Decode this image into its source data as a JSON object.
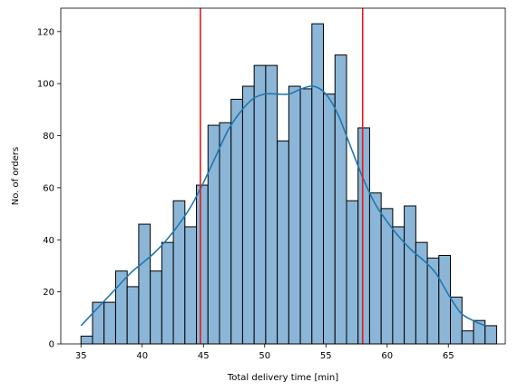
{
  "chart_data": {
    "type": "bar",
    "subtype": "histogram-with-kde",
    "xlabel": "Total delivery time [min]",
    "ylabel": "No. of orders",
    "xlim": [
      33.35,
      69.65
    ],
    "ylim": [
      0,
      129
    ],
    "xticks": [
      35,
      40,
      45,
      50,
      55,
      60,
      65
    ],
    "yticks": [
      0,
      20,
      40,
      60,
      80,
      100,
      120
    ],
    "bin_start": 35,
    "bin_width": 0.9428,
    "counts": [
      3,
      16,
      16,
      28,
      22,
      46,
      28,
      39,
      55,
      45,
      61,
      84,
      85,
      94,
      99,
      107,
      107,
      78,
      99,
      98,
      123,
      96,
      111,
      55,
      83,
      58,
      52,
      45,
      53,
      39,
      33,
      34,
      18,
      5,
      9,
      7
    ],
    "kde": {
      "x": [
        35,
        36,
        37,
        38,
        39,
        40,
        41,
        42,
        43,
        44,
        45,
        46,
        47,
        48,
        49,
        50,
        51,
        52,
        53,
        54,
        55,
        56,
        57,
        58,
        59,
        60,
        61,
        62,
        63,
        64,
        65,
        66,
        67,
        68
      ],
      "y": [
        7,
        12,
        17,
        22,
        27,
        31,
        35,
        40,
        46,
        53,
        62,
        72,
        82,
        89,
        94,
        96,
        96,
        96,
        98,
        99,
        96,
        88,
        76,
        64,
        54,
        47,
        41,
        36,
        32,
        27,
        19,
        12,
        9,
        7
      ]
    },
    "vlines": [
      44.75,
      58.0
    ],
    "colors": {
      "bar_fill": "#8cb6d7",
      "bar_edge": "#000000",
      "kde_line": "#1f77b4",
      "vline": "#e41a1c"
    }
  }
}
